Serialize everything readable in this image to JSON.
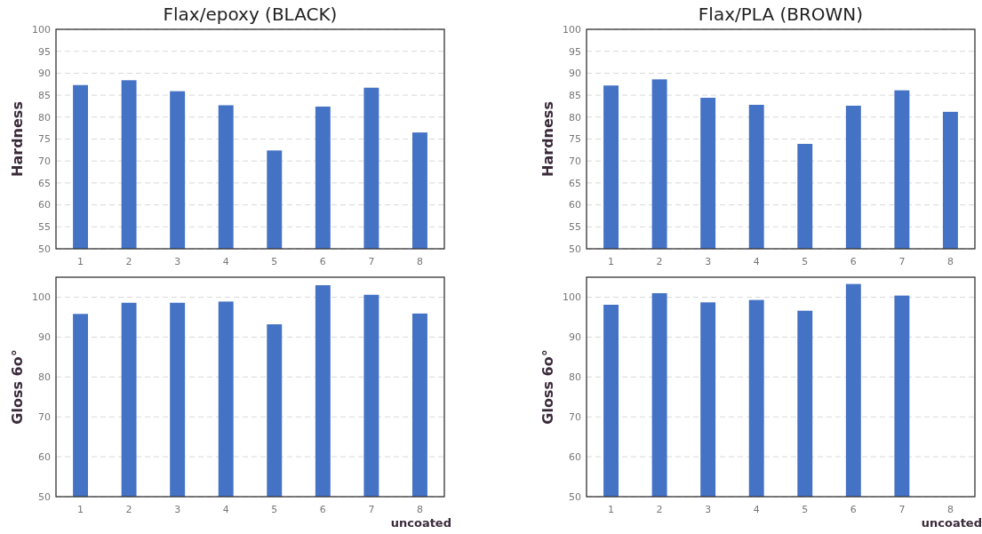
{
  "chart_data": [
    {
      "type": "bar",
      "title": "Flax/epoxy (BLACK)",
      "ylabel": "Hardness",
      "categories": [
        "1",
        "2",
        "3",
        "4",
        "5",
        "6",
        "7",
        "8"
      ],
      "values": [
        87.3,
        88.4,
        85.9,
        82.7,
        72.4,
        82.4,
        86.7,
        76.5
      ],
      "color": "#4472c4",
      "ylim": [
        50,
        100
      ],
      "yticks": [
        50,
        55,
        60,
        65,
        70,
        75,
        80,
        85,
        90,
        95,
        100
      ],
      "grid": "y"
    },
    {
      "type": "bar",
      "title": "Flax/PLA (BROWN)",
      "ylabel": "Hardness",
      "categories": [
        "1",
        "2",
        "3",
        "4",
        "5",
        "6",
        "7",
        "8"
      ],
      "values": [
        87.2,
        88.6,
        84.4,
        82.8,
        73.9,
        82.6,
        86.1,
        81.2
      ],
      "color": "#4472c4",
      "ylim": [
        50,
        100
      ],
      "yticks": [
        50,
        55,
        60,
        65,
        70,
        75,
        80,
        85,
        90,
        95,
        100
      ],
      "grid": "y"
    },
    {
      "type": "bar",
      "ylabel": "Gloss 6o°",
      "annotations": [
        "uncoated"
      ],
      "categories": [
        "1",
        "2",
        "3",
        "4",
        "5",
        "6",
        "7",
        "8"
      ],
      "values": [
        95.8,
        98.6,
        98.6,
        98.9,
        93.2,
        103.0,
        100.6,
        95.9
      ],
      "color": "#4472c4",
      "ylim": [
        50,
        105
      ],
      "yticks": [
        50,
        60,
        70,
        80,
        90,
        100
      ],
      "grid": "y"
    },
    {
      "type": "bar",
      "ylabel": "Gloss 6o°",
      "annotations": [
        "uncoated"
      ],
      "categories": [
        "1",
        "2",
        "3",
        "4",
        "5",
        "6",
        "7",
        "8"
      ],
      "values": [
        98.1,
        101.0,
        98.7,
        99.3,
        96.6,
        103.3,
        100.4,
        null
      ],
      "color": "#4472c4",
      "ylim": [
        50,
        105
      ],
      "yticks": [
        50,
        60,
        70,
        80,
        90,
        100
      ],
      "grid": "y"
    }
  ]
}
